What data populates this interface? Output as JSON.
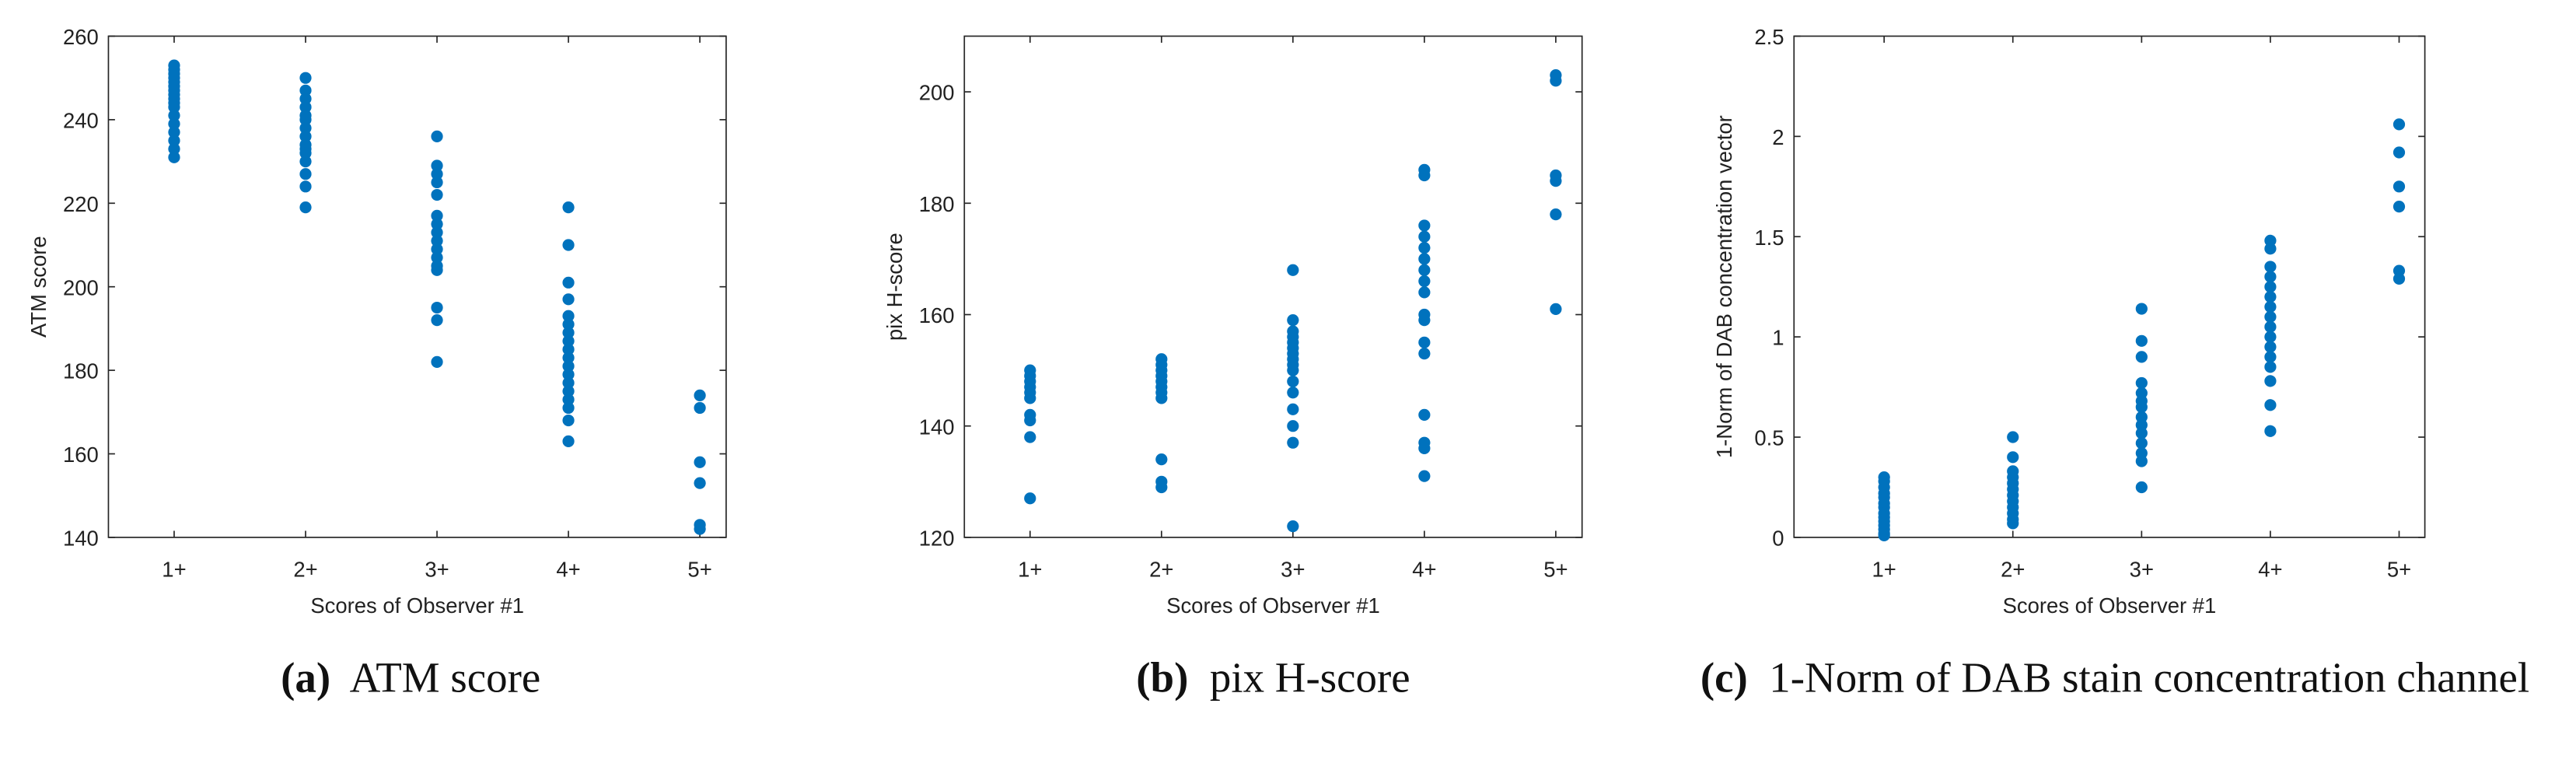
{
  "chart_data": [
    {
      "type": "scatter",
      "color": "#0072bd",
      "xlabel": "Scores of Observer #1",
      "ylabel": "ATM score",
      "xlim": [
        0.5,
        5.2
      ],
      "ylim": [
        140,
        260
      ],
      "xticks": [
        {
          "value": 1,
          "label": "1+"
        },
        {
          "value": 2,
          "label": "2+"
        },
        {
          "value": 3,
          "label": "3+"
        },
        {
          "value": 4,
          "label": "4+"
        },
        {
          "value": 5,
          "label": "5+"
        }
      ],
      "yticks": [
        140,
        160,
        180,
        200,
        220,
        240,
        260
      ],
      "x": [
        1,
        1,
        1,
        1,
        1,
        1,
        1,
        1,
        1,
        1,
        1,
        1,
        1,
        1,
        1,
        1,
        1,
        2,
        2,
        2,
        2,
        2,
        2,
        2,
        2,
        2,
        2,
        2,
        2,
        2,
        2,
        2,
        3,
        3,
        3,
        3,
        3,
        3,
        3,
        3,
        3,
        3,
        3,
        3,
        3,
        3,
        3,
        3,
        4,
        4,
        4,
        4,
        4,
        4,
        4,
        4,
        4,
        4,
        4,
        4,
        4,
        4,
        4,
        4,
        4,
        4,
        5,
        5,
        5,
        5,
        5,
        5
      ],
      "values": [
        253,
        252,
        251,
        250,
        249,
        248,
        247,
        246,
        245,
        244,
        243,
        241,
        239,
        237,
        235,
        233,
        231,
        250,
        247,
        245,
        243,
        241,
        240,
        238,
        236,
        234,
        233,
        232,
        230,
        227,
        224,
        219,
        236,
        229,
        227,
        225,
        222,
        217,
        215,
        213,
        211,
        209,
        207,
        205,
        204,
        195,
        192,
        182,
        219,
        210,
        201,
        197,
        193,
        191,
        189,
        187,
        185,
        183,
        181,
        179,
        177,
        175,
        173,
        171,
        168,
        163,
        174,
        171,
        158,
        153,
        143,
        142
      ],
      "caption_label": "(a)",
      "caption_text": "ATM score"
    },
    {
      "type": "scatter",
      "color": "#0072bd",
      "xlabel": "Scores of Observer #1",
      "ylabel": "pix H-score",
      "xlim": [
        0.5,
        5.2
      ],
      "ylim": [
        120,
        210
      ],
      "xticks": [
        {
          "value": 1,
          "label": "1+"
        },
        {
          "value": 2,
          "label": "2+"
        },
        {
          "value": 3,
          "label": "3+"
        },
        {
          "value": 4,
          "label": "4+"
        },
        {
          "value": 5,
          "label": "5+"
        }
      ],
      "yticks": [
        120,
        140,
        160,
        180,
        200
      ],
      "x": [
        1,
        1,
        1,
        1,
        1,
        1,
        1,
        1,
        1,
        1,
        2,
        2,
        2,
        2,
        2,
        2,
        2,
        2,
        2,
        2,
        2,
        3,
        3,
        3,
        3,
        3,
        3,
        3,
        3,
        3,
        3,
        3,
        3,
        3,
        3,
        3,
        3,
        4,
        4,
        4,
        4,
        4,
        4,
        4,
        4,
        4,
        4,
        4,
        4,
        4,
        4,
        4,
        4,
        4,
        5,
        5,
        5,
        5,
        5,
        5
      ],
      "values": [
        150,
        149,
        148,
        147,
        146,
        145,
        142,
        141,
        138,
        127,
        152,
        151,
        150,
        149,
        148,
        147,
        146,
        145,
        134,
        130,
        129,
        168,
        159,
        157,
        156,
        155,
        154,
        153,
        152,
        151,
        150,
        148,
        146,
        143,
        140,
        137,
        122,
        186,
        185,
        176,
        174,
        172,
        170,
        168,
        166,
        164,
        160,
        159,
        155,
        153,
        142,
        137,
        136,
        131,
        203,
        202,
        185,
        184,
        178,
        161
      ],
      "caption_label": "(b)",
      "caption_text": "pix H-score"
    },
    {
      "type": "scatter",
      "color": "#0072bd",
      "xlabel": "Scores of Observer #1",
      "ylabel": "1-Norm of DAB concentration vector",
      "xlim": [
        0.3,
        5.2
      ],
      "ylim": [
        0,
        2.5
      ],
      "xticks": [
        {
          "value": 1,
          "label": "1+"
        },
        {
          "value": 2,
          "label": "2+"
        },
        {
          "value": 3,
          "label": "3+"
        },
        {
          "value": 4,
          "label": "4+"
        },
        {
          "value": 5,
          "label": "5+"
        }
      ],
      "yticks": [
        0,
        0.5,
        1,
        1.5,
        2,
        2.5
      ],
      "x": [
        1,
        1,
        1,
        1,
        1,
        1,
        1,
        1,
        1,
        1,
        1,
        1,
        1,
        1,
        2,
        2,
        2,
        2,
        2,
        2,
        2,
        2,
        2,
        2,
        2,
        2,
        3,
        3,
        3,
        3,
        3,
        3,
        3,
        3,
        3,
        3,
        3,
        3,
        3,
        3,
        4,
        4,
        4,
        4,
        4,
        4,
        4,
        4,
        4,
        4,
        4,
        4,
        4,
        4,
        4,
        4,
        5,
        5,
        5,
        5,
        5,
        5
      ],
      "values": [
        0.3,
        0.28,
        0.25,
        0.22,
        0.2,
        0.17,
        0.15,
        0.12,
        0.1,
        0.08,
        0.06,
        0.04,
        0.02,
        0.01,
        0.5,
        0.4,
        0.33,
        0.3,
        0.27,
        0.24,
        0.21,
        0.18,
        0.15,
        0.12,
        0.09,
        0.07,
        1.14,
        0.98,
        0.9,
        0.77,
        0.72,
        0.68,
        0.65,
        0.6,
        0.56,
        0.52,
        0.47,
        0.42,
        0.38,
        0.25,
        1.48,
        1.44,
        1.35,
        1.3,
        1.25,
        1.2,
        1.15,
        1.1,
        1.05,
        1.0,
        0.95,
        0.9,
        0.85,
        0.78,
        0.66,
        0.53,
        2.06,
        1.92,
        1.75,
        1.65,
        1.33,
        1.29
      ],
      "caption_label": "(c)",
      "caption_text": "1-Norm of DAB stain concentration channel"
    }
  ]
}
